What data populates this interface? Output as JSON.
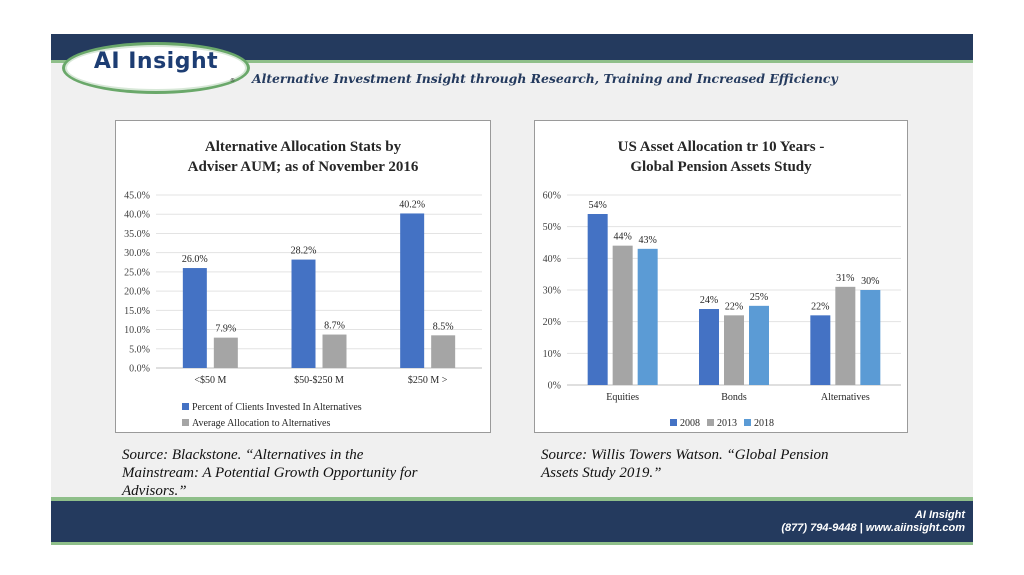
{
  "header": {
    "logo_text": "AI Insight",
    "logo_mark": "®",
    "tagline": "Alternative Investment Insight through Research, Training and Increased Efficiency"
  },
  "chart_data": [
    {
      "type": "bar",
      "title": [
        "Alternative Allocation Stats by",
        "Adviser AUM; as of November 2016"
      ],
      "categories": [
        "<$50 M",
        "$50-$250 M",
        "$250 M >"
      ],
      "series": [
        {
          "name": "Percent of Clients Invested In Alternatives",
          "values": [
            26.0,
            28.2,
            40.2
          ],
          "labels": [
            "26.0%",
            "28.2%",
            "40.2%"
          ],
          "color": "#4472c4"
        },
        {
          "name": "Average Allocation to Alternatives",
          "values": [
            7.9,
            8.7,
            8.5
          ],
          "labels": [
            "7.9%",
            "8.7%",
            "8.5%"
          ],
          "color": "#a5a5a5"
        }
      ],
      "yticks": [
        "0.0%",
        "5.0%",
        "10.0%",
        "15.0%",
        "20.0%",
        "25.0%",
        "30.0%",
        "35.0%",
        "40.0%",
        "45.0%"
      ],
      "ylim": [
        0,
        45
      ],
      "grid": true,
      "legend": "bottom"
    },
    {
      "type": "bar",
      "title": [
        "US Asset Allocation tr 10 Years -",
        "Global Pension Assets Study"
      ],
      "categories": [
        "Equities",
        "Bonds",
        "Alternatives"
      ],
      "series": [
        {
          "name": "2008",
          "values": [
            54,
            24,
            22
          ],
          "labels": [
            "54%",
            "24%",
            "22%"
          ],
          "color": "#4472c4"
        },
        {
          "name": "2013",
          "values": [
            44,
            22,
            31
          ],
          "labels": [
            "44%",
            "22%",
            "31%"
          ],
          "color": "#a5a5a5"
        },
        {
          "name": "2018",
          "values": [
            43,
            25,
            30
          ],
          "labels": [
            "43%",
            "25%",
            "30%"
          ],
          "color": "#5b9bd5"
        }
      ],
      "yticks": [
        "0%",
        "10%",
        "20%",
        "30%",
        "40%",
        "50%",
        "60%"
      ],
      "ylim": [
        0,
        60
      ],
      "grid": true,
      "legend": "bottom"
    }
  ],
  "sources": {
    "left": [
      "Source: Blackstone. “Alternatives in the",
      "Mainstream: A Potential Growth Opportunity for",
      "Advisors.”"
    ],
    "right": [
      "Source: Willis Towers Watson. “Global Pension",
      "Assets Study 2019.”"
    ]
  },
  "footer": {
    "name": "AI Insight",
    "contact": "(877) 794-9448 | www.aiinsight.com"
  }
}
